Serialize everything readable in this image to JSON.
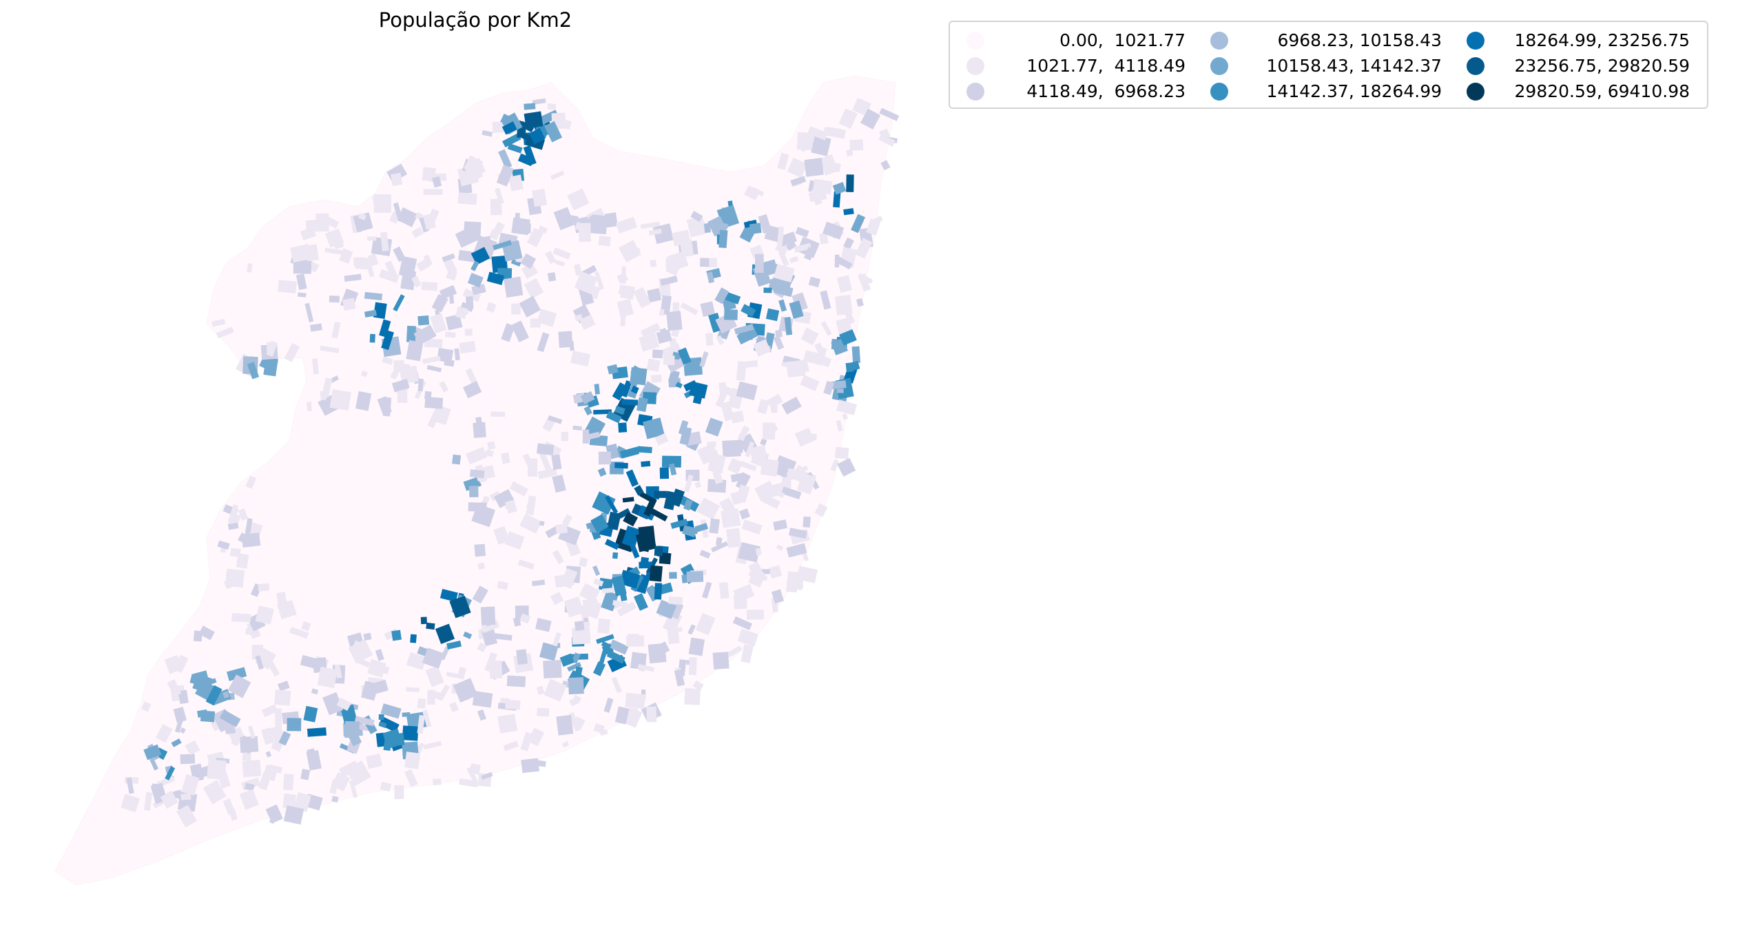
{
  "title": "População por Km2",
  "chart_data": {
    "type": "choropleth",
    "title": "População por Km2",
    "classification": "quantiles",
    "legend_placement": "upper-right, outside map, 3 columns",
    "classes": [
      {
        "label": "0.00,  1021.77",
        "min": 0.0,
        "max": 1021.77,
        "color": "#fff7fb"
      },
      {
        "label": "1021.77,  4118.49",
        "min": 1021.77,
        "max": 4118.49,
        "color": "#ece7f2"
      },
      {
        "label": "4118.49,  6968.23",
        "min": 4118.49,
        "max": 6968.23,
        "color": "#d0d1e6"
      },
      {
        "label": "6968.23, 10158.43",
        "min": 6968.23,
        "max": 10158.43,
        "color": "#a6bddb"
      },
      {
        "label": "10158.43, 14142.37",
        "min": 10158.43,
        "max": 14142.37,
        "color": "#74a9cf"
      },
      {
        "label": "14142.37, 18264.99",
        "min": 14142.37,
        "max": 18264.99,
        "color": "#3690c0"
      },
      {
        "label": "18264.99, 23256.75",
        "min": 18264.99,
        "max": 23256.75,
        "color": "#0570b0"
      },
      {
        "label": "23256.75, 29820.59",
        "min": 23256.75,
        "max": 29820.59,
        "color": "#045a8d"
      },
      {
        "label": "29820.59, 69410.98",
        "min": 29820.59,
        "max": 69410.98,
        "color": "#023858"
      }
    ],
    "grid": false,
    "axes": "off"
  }
}
